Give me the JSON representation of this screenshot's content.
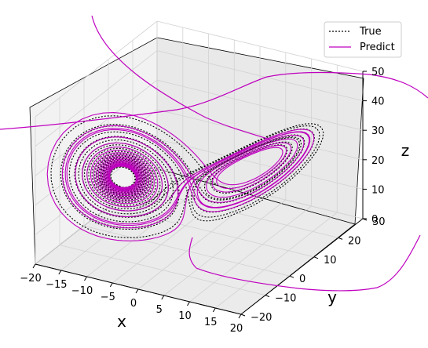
{
  "chart_data": {
    "type": "line",
    "projection": "3d",
    "title": "",
    "xlabel": "x",
    "ylabel": "y",
    "zlabel": "z",
    "xlim": [
      -20,
      20
    ],
    "ylim": [
      -20,
      30
    ],
    "zlim": [
      0,
      50
    ],
    "x_ticks": [
      "−20",
      "−15",
      "−10",
      "−5",
      "0",
      "5",
      "10",
      "15",
      "20"
    ],
    "y_ticks": [
      "−20",
      "−10",
      "0",
      "10",
      "20",
      "30"
    ],
    "z_ticks": [
      "0",
      "10",
      "20",
      "30",
      "40",
      "50"
    ],
    "grid": true,
    "legend_position": "top-right",
    "series": [
      {
        "name": "True",
        "color": "#000000",
        "style": "dotted"
      },
      {
        "name": "Predict",
        "color": "#bf00bf",
        "style": "solid"
      }
    ]
  }
}
